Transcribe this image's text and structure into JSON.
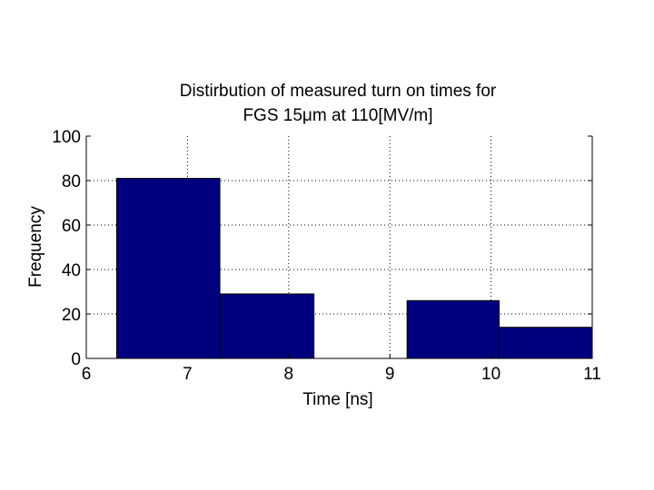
{
  "chart_data": {
    "type": "bar",
    "title_lines": [
      "Distirbution of measured turn on times for",
      "FGS 15μm at 110[MV/m]"
    ],
    "xlabel": "Time [ns]",
    "ylabel": "Frequency",
    "xlim": [
      6,
      11
    ],
    "ylim": [
      0,
      100
    ],
    "xticks": [
      "6",
      "7",
      "8",
      "9",
      "10",
      "11"
    ],
    "yticks": [
      "0",
      "20",
      "40",
      "60",
      "80",
      "100"
    ],
    "grid": true,
    "bar_color": "#00007f",
    "bins": [
      {
        "start": 6.3,
        "end": 7.32,
        "value": 81
      },
      {
        "start": 7.32,
        "end": 8.25,
        "value": 29
      },
      {
        "start": 8.25,
        "end": 9.17,
        "value": 0
      },
      {
        "start": 9.17,
        "end": 10.08,
        "value": 26
      },
      {
        "start": 10.08,
        "end": 11.0,
        "value": 14
      }
    ]
  }
}
